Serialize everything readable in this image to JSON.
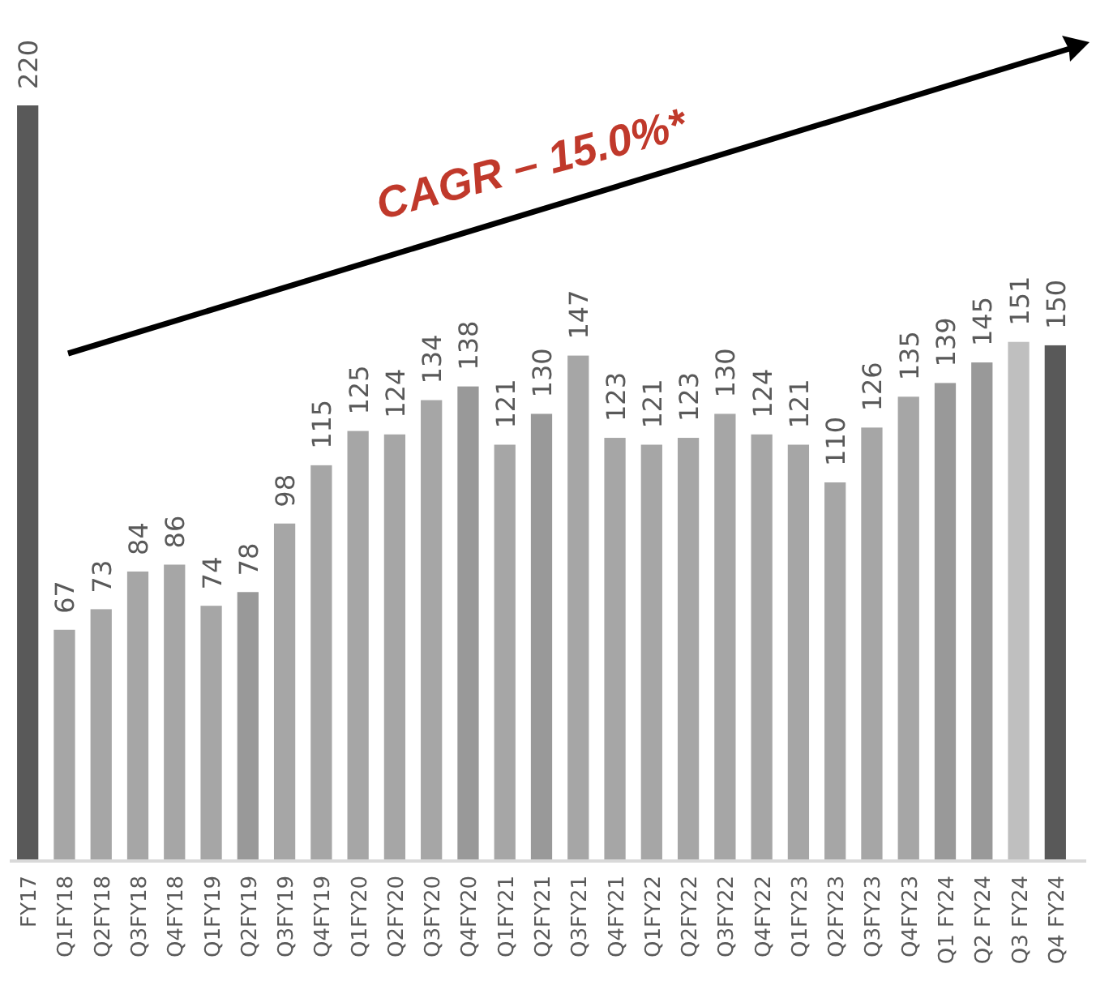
{
  "chart_data": {
    "type": "bar",
    "categories": [
      "FY17",
      "Q1FY18",
      "Q2FY18",
      "Q3FY18",
      "Q4FY18",
      "Q1FY19",
      "Q2FY19",
      "Q3FY19",
      "Q4FY19",
      "Q1FY20",
      "Q2FY20",
      "Q3FY20",
      "Q4FY20",
      "Q1FY21",
      "Q2FY21",
      "Q3FY21",
      "Q4FY21",
      "Q1FY22",
      "Q2FY22",
      "Q3FY22",
      "Q4FY22",
      "Q1FY23",
      "Q2FY23",
      "Q3FY23",
      "Q4FY23",
      "Q1 FY24",
      "Q2 FY24",
      "Q3 FY24",
      "Q4 FY24"
    ],
    "values": [
      220,
      67,
      73,
      84,
      86,
      74,
      78,
      98,
      115,
      125,
      124,
      134,
      138,
      121,
      130,
      147,
      123,
      121,
      123,
      130,
      124,
      121,
      110,
      126,
      135,
      139,
      145,
      151,
      150
    ],
    "colors": [
      "#595959",
      "#a6a6a6",
      "#a6a6a6",
      "#a6a6a6",
      "#a6a6a6",
      "#a6a6a6",
      "#999999",
      "#a6a6a6",
      "#a6a6a6",
      "#a6a6a6",
      "#a6a6a6",
      "#a6a6a6",
      "#999999",
      "#a6a6a6",
      "#999999",
      "#a6a6a6",
      "#a6a6a6",
      "#a6a6a6",
      "#a6a6a6",
      "#a6a6a6",
      "#a6a6a6",
      "#a6a6a6",
      "#a6a6a6",
      "#a6a6a6",
      "#a6a6a6",
      "#999999",
      "#999999",
      "#bfbfbf",
      "#595959"
    ],
    "data_labels": true,
    "annotations": [
      "CAGR – 15.0%*"
    ]
  }
}
